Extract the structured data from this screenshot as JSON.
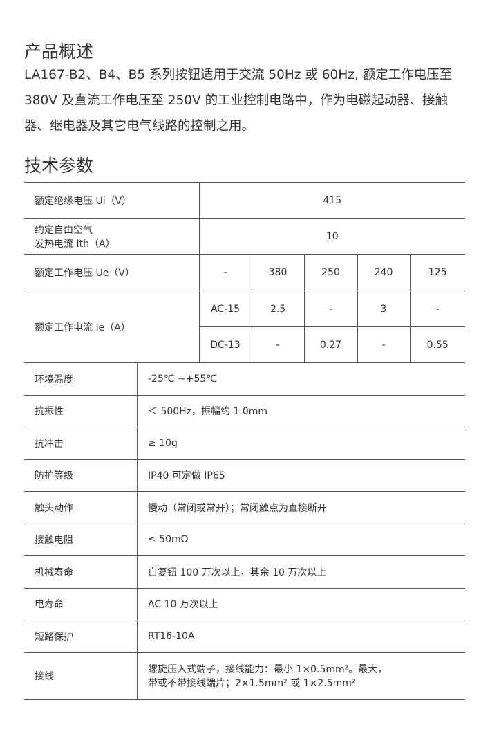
{
  "overview": {
    "title": "产品概述",
    "text": "LA167-B2、B4、B5 系列按钮适用于交流 50Hz 或 60Hz, 额定工作电压至 380V 及直流工作电压至 250V 的工业控制电路中，作为电磁起动器、接触器、继电器及其它电气线路的控制之用。"
  },
  "specs": {
    "title": "技术参数",
    "insulation": {
      "label": "额定绝缘电压 Ui（V）",
      "value": "415"
    },
    "thermal": {
      "label1": "约定自由空气",
      "label2": "发热电流 Ith（A）",
      "value": "10"
    },
    "ue": {
      "label": "额定工作电压 Ue（V）",
      "values": [
        "-",
        "380",
        "250",
        "240",
        "125"
      ]
    },
    "ie": {
      "label": "额定工作电流 Ie（A）",
      "rows": [
        {
          "cat": "AC-15",
          "values": [
            "2.5",
            "-",
            "3",
            "-"
          ]
        },
        {
          "cat": "DC-13",
          "values": [
            "-",
            "0.27",
            "-",
            "0.55"
          ]
        }
      ]
    },
    "rows": [
      {
        "label": "环境温度",
        "value": "-25℃ ~+55℃"
      },
      {
        "label": "抗振性",
        "value": "＜ 500Hz，振幅约 1.0mm"
      },
      {
        "label": "抗冲击",
        "value": "≥ 10g"
      },
      {
        "label": "防护等级",
        "value": "IP40 可定做 IP65"
      },
      {
        "label": "触头动作",
        "value": "慢动（常闭或常开）；常闭触点为直接断开"
      },
      {
        "label": "接触电阻",
        "value": "≤ 50mΩ"
      },
      {
        "label": "机械寿命",
        "value": "自复钮 100 万次以上，其余 10 万次以上"
      },
      {
        "label": "电寿命",
        "value": "AC 10 万次以上"
      },
      {
        "label": "短路保护",
        "value": "RT16-10A"
      }
    ],
    "wiring": {
      "label": "接线",
      "line1": "螺旋压入式端子，接线能力：最小 1×0.5mm²。最大，",
      "line2": "带或不带接线端片；2×1.5mm² 或 1×2.5mm²"
    }
  }
}
